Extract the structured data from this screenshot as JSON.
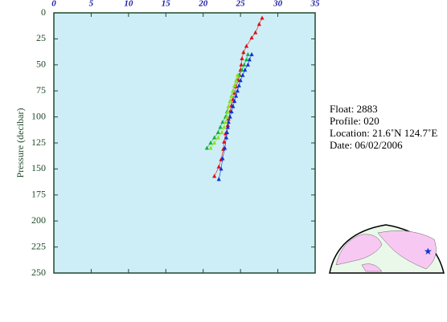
{
  "chart_data": {
    "type": "line",
    "ylabel": "Pressure (decibar)",
    "xlim": [
      0,
      35
    ],
    "xticks": [
      0,
      5,
      10,
      15,
      20,
      25,
      30,
      35
    ],
    "ylim": [
      0,
      250
    ],
    "yticks": [
      0,
      25,
      50,
      75,
      100,
      125,
      150,
      175,
      200,
      225,
      250
    ],
    "series": [
      {
        "color": "#e01010",
        "pressure": [
          5,
          11,
          19,
          24,
          32,
          38,
          44,
          50,
          55,
          60,
          65,
          71,
          77,
          83,
          89,
          95,
          102,
          108,
          116,
          124,
          131,
          141,
          148,
          157
        ],
        "values": [
          27.9,
          27.5,
          27.0,
          26.5,
          25.8,
          25.4,
          25.2,
          25.1,
          25.0,
          24.9,
          24.7,
          24.4,
          24.2,
          24.0,
          23.8,
          23.6,
          23.4,
          23.3,
          23.0,
          22.8,
          22.7,
          22.4,
          22.1,
          21.5
        ]
      },
      {
        "color": "#1030d0",
        "pressure": [
          40,
          45,
          50,
          55,
          60,
          65,
          70,
          75,
          80,
          85,
          90,
          95,
          100,
          105,
          110,
          115,
          120,
          130,
          140,
          150,
          160
        ],
        "values": [
          26.5,
          26.2,
          26.0,
          25.6,
          25.3,
          25.0,
          24.8,
          24.6,
          24.4,
          24.2,
          24.0,
          23.8,
          23.6,
          23.4,
          23.3,
          23.2,
          23.1,
          22.9,
          22.6,
          22.4,
          22.1
        ]
      },
      {
        "color": "#10b040",
        "pressure": [
          40,
          45,
          50,
          55,
          60,
          65,
          70,
          75,
          80,
          85,
          90,
          95,
          100,
          105,
          110,
          115,
          120,
          125,
          130
        ],
        "values": [
          26.0,
          25.8,
          25.5,
          25.2,
          24.8,
          24.5,
          24.2,
          24.0,
          23.8,
          23.6,
          23.4,
          23.2,
          23.0,
          22.6,
          22.3,
          22.0,
          21.5,
          21.0,
          20.5
        ]
      },
      {
        "color": "#90e020",
        "pressure": [
          60,
          65,
          70,
          75,
          80,
          85,
          90,
          95,
          100,
          105,
          110,
          115,
          120,
          125,
          130
        ],
        "values": [
          24.6,
          24.4,
          24.2,
          24.0,
          23.8,
          23.6,
          23.4,
          23.3,
          23.2,
          23.0,
          22.8,
          22.5,
          22.0,
          21.5,
          21.0
        ]
      }
    ]
  },
  "info": {
    "float": "Float:  2883",
    "profile": "Profile:  020",
    "location": "Location:  21.6˚N  124.7˚E",
    "date": "Date:  06/02/2006"
  }
}
